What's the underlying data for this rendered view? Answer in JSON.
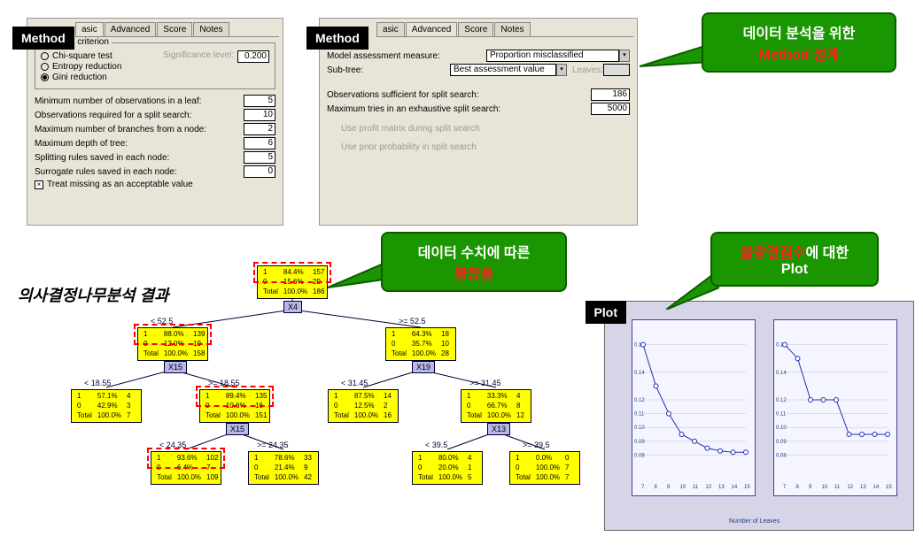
{
  "labels": {
    "method": "Method",
    "plot": "Plot",
    "section": "의사결정나무분석 결과"
  },
  "callouts": {
    "c1_line1": "데이터 분석을 위한",
    "c1_line2": "Method  설계",
    "c2_line1": "데이터 수치에 따른",
    "c2_line2": "불량율",
    "c3_line1": "불량결점수",
    "c3_line1b": "에 대한",
    "c3_line2": "Plot"
  },
  "panel1": {
    "tabs": [
      "asic",
      "Advanced",
      "Score",
      "Notes"
    ],
    "legend": "Splitting criterion",
    "radios": [
      {
        "label": "Chi-square test",
        "sel": false
      },
      {
        "label": "Entropy reduction",
        "sel": false
      },
      {
        "label": "Gini reduction",
        "sel": true
      }
    ],
    "sig_label": "Significance level:",
    "sig_val": "0.200",
    "params": [
      {
        "label": "Minimum number of observations in a leaf:",
        "val": "5"
      },
      {
        "label": "Observations required for a split search:",
        "val": "10"
      },
      {
        "label": "Maximum number of branches from a node:",
        "val": "2"
      },
      {
        "label": "Maximum depth of tree:",
        "val": "6"
      },
      {
        "label": "Splitting rules saved in each node:",
        "val": "5"
      },
      {
        "label": "Surrogate rules saved in each node:",
        "val": "0"
      }
    ],
    "check": "Treat missing as an acceptable value"
  },
  "panel2": {
    "tabs": [
      "asic",
      "Advanced",
      "Score",
      "Notes"
    ],
    "measure_label": "Model assessment measure:",
    "measure_val": "Proportion misclassified",
    "subtree_label": "Sub-tree:",
    "subtree_val": "Best assessment value",
    "leaves_label": "Leaves:",
    "obs_label": "Observations sufficient for split search:",
    "obs_val": "186",
    "tries_label": "Maximum tries in an exhaustive split search:",
    "tries_val": "5000",
    "grey1": "Use profit matrix during split search",
    "grey2": "Use prior probability in split search"
  },
  "tree": {
    "root": {
      "r1": "1",
      "p1": "84.4%",
      "n1": "157",
      "r2": "0",
      "p2": "15.6%",
      "n2": "29",
      "tp": "100.0%",
      "tn": "186"
    },
    "root_var": "X4",
    "l1": {
      "cond": "< 52.5",
      "r1": "1",
      "p1": "88.0%",
      "n1": "139",
      "r2": "0",
      "p2": "12.0%",
      "n2": "19",
      "tp": "100.0%",
      "tn": "158"
    },
    "r1": {
      "cond": ">= 52.5",
      "r1": "1",
      "p1": "64.3%",
      "n1": "18",
      "r2": "0",
      "p2": "35.7%",
      "n2": "10",
      "tp": "100.0%",
      "tn": "28"
    },
    "l1_var": "X15",
    "r1_var": "X19",
    "ll": {
      "cond": "< 18.55",
      "r1": "1",
      "p1": "57.1%",
      "n1": "4",
      "r2": "0",
      "p2": "42.9%",
      "n2": "3",
      "tp": "100.0%",
      "tn": "7"
    },
    "lr": {
      "cond": ">= 18.55",
      "r1": "1",
      "p1": "89.4%",
      "n1": "135",
      "r2": "0",
      "p2": "10.6%",
      "n2": "16",
      "tp": "100.0%",
      "tn": "151"
    },
    "rl": {
      "cond": "< 31.45",
      "r1": "1",
      "p1": "87.5%",
      "n1": "14",
      "r2": "0",
      "p2": "12.5%",
      "n2": "2",
      "tp": "100.0%",
      "tn": "16"
    },
    "rr": {
      "cond": ">= 31.45",
      "r1": "1",
      "p1": "33.3%",
      "n1": "4",
      "r2": "0",
      "p2": "66.7%",
      "n2": "8",
      "tp": "100.0%",
      "tn": "12"
    },
    "lr_var": "X15",
    "rr_var": "X13",
    "lrl": {
      "cond": "< 24.35",
      "r1": "1",
      "p1": "93.6%",
      "n1": "102",
      "r2": "0",
      "p2": "6.4%",
      "n2": "7",
      "tp": "100.0%",
      "tn": "109"
    },
    "lrr": {
      "cond": ">= 24.35",
      "r1": "1",
      "p1": "78.6%",
      "n1": "33",
      "r2": "0",
      "p2": "21.4%",
      "n2": "9",
      "tp": "100.0%",
      "tn": "42"
    },
    "rrl": {
      "cond": "< 39.5",
      "r1": "1",
      "p1": "80.0%",
      "n1": "4",
      "r2": "0",
      "p2": "20.0%",
      "n2": "1",
      "tp": "100.0%",
      "tn": "5"
    },
    "rrr": {
      "cond": ">= 39.5",
      "r1": "1",
      "p1": "0.0%",
      "n1": "0",
      "r2": "0",
      "p2": "100.0%",
      "n2": "7",
      "tp": "100.0%",
      "tn": "7"
    }
  },
  "plot": {
    "y_ticks": [
      "0.16",
      "0.14",
      "0.12",
      "0.11",
      "0.10",
      "0.09",
      "0.08"
    ],
    "x_ticks": [
      "7",
      "8",
      "9",
      "10",
      "11",
      "12",
      "13",
      "14",
      "15"
    ],
    "x_label": "Number of Leaves",
    "line_color": "#2030b0",
    "marker_color": "#2030b0",
    "series1": [
      0.16,
      0.13,
      0.11,
      0.095,
      0.09,
      0.085,
      0.083,
      0.082,
      0.082
    ],
    "series2": [
      0.16,
      0.15,
      0.12,
      0.12,
      0.12,
      0.095,
      0.095,
      0.095,
      0.095
    ]
  },
  "colors": {
    "panel_bg": "#e8e4d8",
    "node_bg": "#ffff00",
    "callout_bg": "#1a9600",
    "callout_red": "#ff2020",
    "plot_bg": "#d8d4e8",
    "dash_red": "#ff0000"
  }
}
